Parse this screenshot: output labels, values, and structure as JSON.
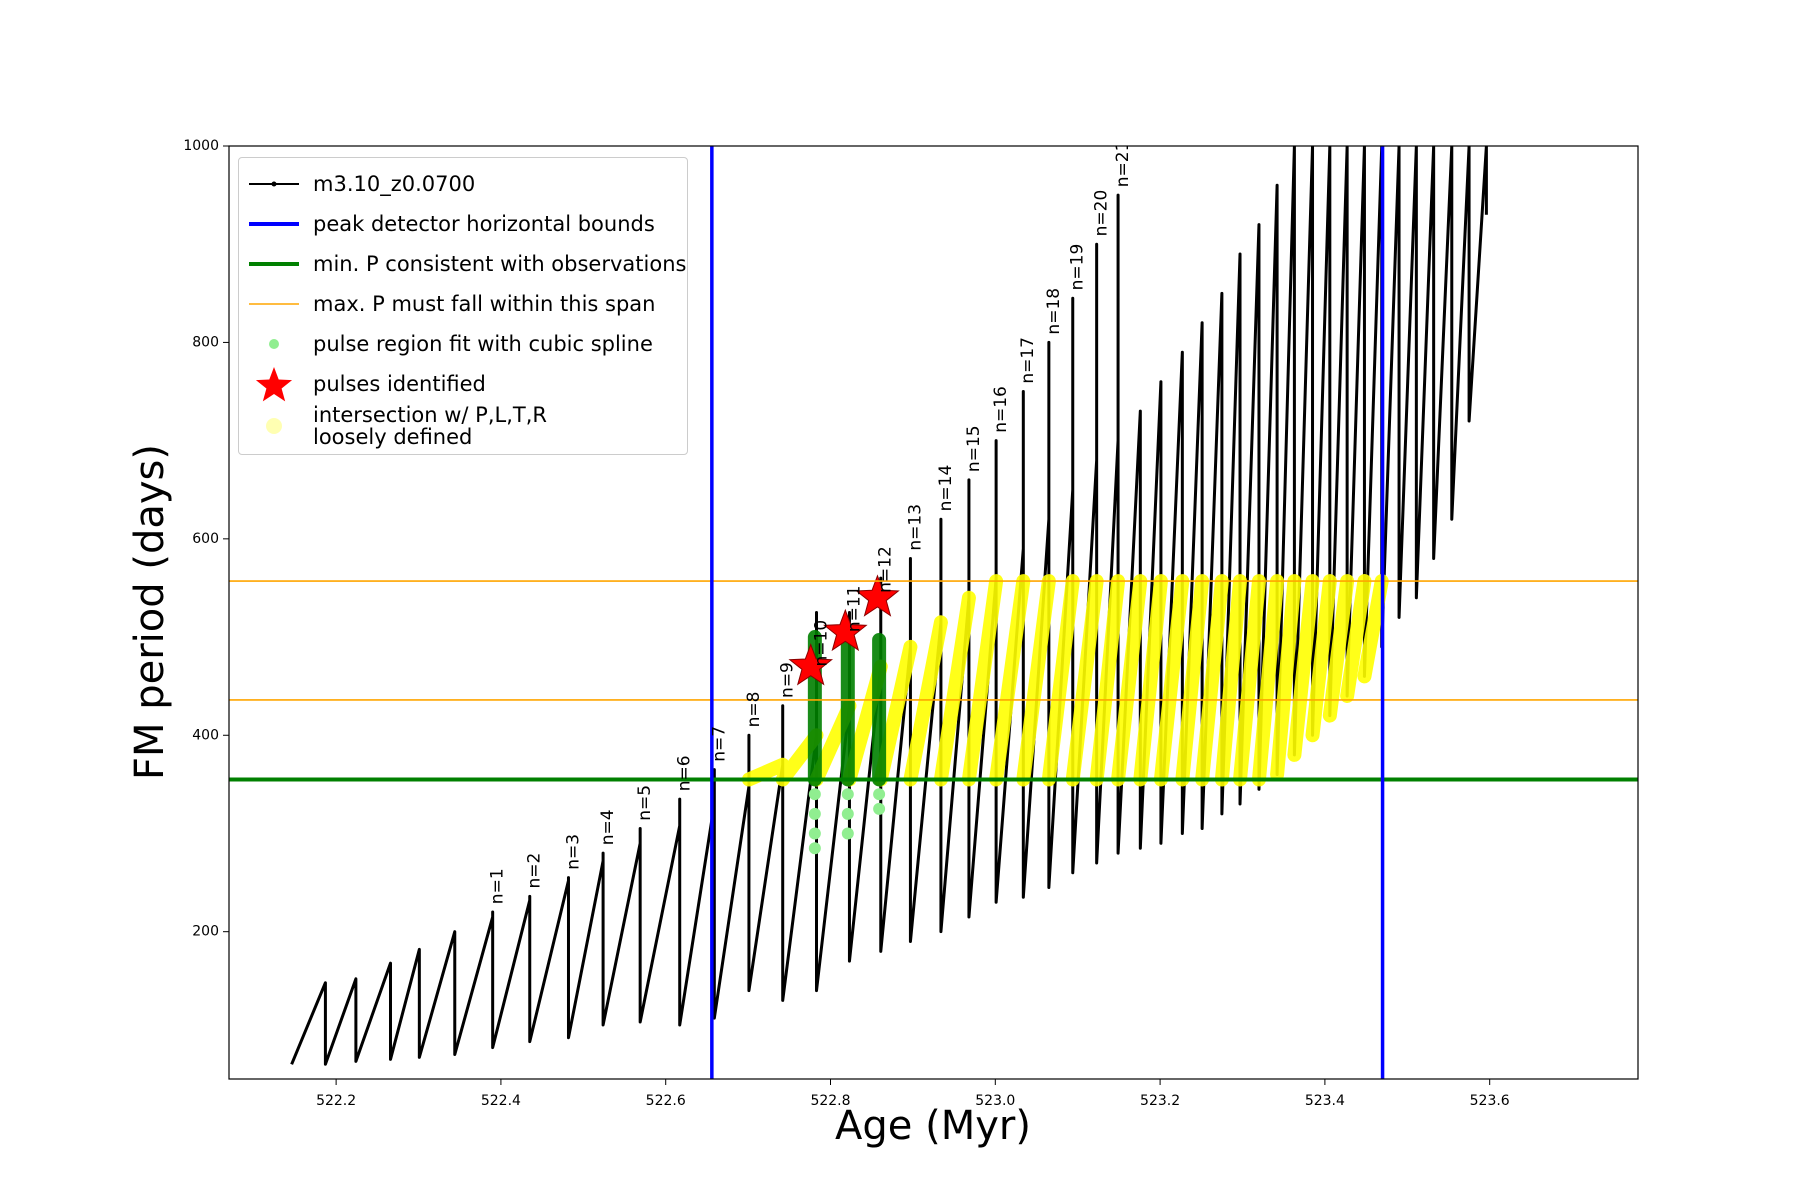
{
  "chart_data": {
    "type": "line",
    "xlabel": "Age (Myr)",
    "ylabel": "FM period (days)",
    "xlim": [
      522.07,
      523.78
    ],
    "ylim": [
      50,
      1000
    ],
    "xticks": [
      522.2,
      522.4,
      522.6,
      522.8,
      {
        "value": 523,
        "label": "523.0"
      },
      523.2,
      523.4,
      523.6
    ],
    "yticks": [
      200,
      400,
      600,
      800,
      1000
    ],
    "legend": "upper left",
    "series": [
      {
        "name": "m3.10_z0.0700",
        "color": "#000000",
        "type": "line",
        "x": [
          522.146,
          522.187,
          522.187,
          522.224,
          522.224,
          522.266,
          522.266,
          522.301,
          522.301,
          522.344,
          522.344,
          522.39,
          522.39,
          522.39,
          522.435,
          522.435,
          522.435,
          522.482,
          522.482,
          522.482,
          522.524,
          522.524,
          522.524,
          522.569,
          522.569,
          522.569,
          522.617,
          522.617,
          522.617,
          522.659,
          522.659,
          522.659,
          522.701,
          522.701,
          522.701,
          522.742,
          522.742,
          522.742,
          522.783,
          522.783,
          522.783,
          522.823,
          522.823,
          522.823,
          522.861,
          522.861,
          522.861,
          522.897,
          522.897,
          522.897,
          522.934,
          522.934,
          522.934,
          522.968,
          522.968,
          522.968,
          523.001,
          523.001,
          523.001,
          523.034,
          523.034,
          523.034,
          523.065,
          523.065,
          523.065,
          523.094,
          523.094,
          523.094,
          523.123,
          523.123,
          523.123,
          523.149,
          523.149,
          523.149,
          523.176,
          523.176,
          523.201,
          523.201,
          523.227,
          523.227,
          523.251,
          523.251,
          523.275,
          523.275,
          523.297,
          523.297,
          523.32,
          523.32,
          523.342,
          523.342,
          523.363,
          523.363,
          523.385,
          523.385,
          523.406,
          523.406,
          523.427,
          523.427,
          523.448,
          523.448,
          523.469,
          523.469,
          523.49,
          523.49,
          523.511,
          523.511,
          523.532,
          523.532,
          523.554,
          523.554,
          523.575,
          523.575,
          523.596,
          523.596
        ],
        "values": [
          65,
          148,
          65,
          152,
          68,
          168,
          70,
          182,
          72,
          200,
          75,
          215,
          220,
          82,
          232,
          236,
          88,
          252,
          255,
          92,
          272,
          280,
          105,
          290,
          305,
          108,
          308,
          335,
          105,
          330,
          365,
          112,
          348,
          400,
          140,
          370,
          430,
          130,
          400,
          525,
          140,
          430,
          525,
          170,
          470,
          560,
          180,
          490,
          580,
          190,
          515,
          620,
          200,
          540,
          660,
          215,
          560,
          700,
          230,
          590,
          750,
          235,
          620,
          800,
          245,
          650,
          845,
          260,
          680,
          900,
          270,
          700,
          950,
          280,
          730,
          285,
          760,
          290,
          790,
          300,
          820,
          305,
          850,
          320,
          890,
          330,
          920,
          345,
          960,
          360,
          1000,
          380,
          1000,
          400,
          1000,
          420,
          1000,
          440,
          1000,
          460,
          1000,
          490,
          1000,
          520,
          1000,
          540,
          1000,
          580,
          1000,
          620,
          1000,
          720,
          1000,
          930
        ]
      },
      {
        "name": "peak detector horizontal bounds",
        "color": "#0000ff",
        "type": "vline",
        "values": [
          522.656,
          523.47
        ]
      },
      {
        "name": "min. P consistent with observations",
        "color": "#008000",
        "type": "hline",
        "style": "thick",
        "values": [
          355
        ]
      },
      {
        "name": "max. P must fall within this span",
        "color": "#ffa500",
        "type": "hline",
        "style": "thin",
        "values": [
          436,
          557
        ]
      },
      {
        "name": "pulse region fit with cubic spline",
        "color": "#90ee90",
        "type": "scatter",
        "x": [
          522.781,
          522.781,
          522.781,
          522.781,
          522.821,
          522.821,
          522.821,
          522.859,
          522.859
        ],
        "values": [
          285,
          300,
          320,
          340,
          300,
          320,
          340,
          325,
          340
        ]
      },
      {
        "name": "pulses identified",
        "color": "#ff0000",
        "type": "star",
        "x": [
          522.776,
          522.818,
          522.857
        ],
        "values": [
          470,
          505,
          540
        ]
      },
      {
        "name": "intersection w/ P,L,T,R\nloosely defined",
        "color": "#ffff00",
        "type": "thickline",
        "x": [
          522.701,
          522.742,
          null,
          522.742,
          522.783,
          null,
          522.783,
          522.823,
          null,
          522.823,
          522.861,
          null,
          522.861,
          522.897,
          null,
          522.897,
          522.934,
          null,
          522.934,
          522.968,
          null,
          522.968,
          523.001,
          null,
          523.001,
          523.034,
          null,
          523.034,
          523.065,
          null,
          523.065,
          523.094,
          null,
          523.094,
          523.123,
          null,
          523.123,
          523.149,
          null,
          523.149,
          523.176,
          null,
          523.176,
          523.201,
          null,
          523.201,
          523.227,
          null,
          523.227,
          523.251,
          null,
          523.251,
          523.275,
          null,
          523.275,
          523.297,
          null,
          523.297,
          523.32,
          null,
          523.32,
          523.342,
          null,
          523.342,
          523.363,
          null,
          523.363,
          523.385,
          null,
          523.385,
          523.406,
          null,
          523.406,
          523.427,
          null,
          523.427,
          523.448,
          null,
          523.448,
          523.469
        ],
        "values": [
          355,
          370,
          null,
          355,
          400,
          null,
          355,
          430,
          null,
          355,
          470,
          null,
          355,
          490,
          null,
          355,
          515,
          null,
          355,
          540,
          null,
          355,
          557,
          null,
          355,
          557,
          null,
          355,
          557,
          null,
          355,
          557,
          null,
          355,
          557,
          null,
          355,
          557,
          null,
          355,
          557,
          null,
          355,
          557,
          null,
          355,
          557,
          null,
          355,
          557,
          null,
          355,
          557,
          null,
          355,
          557,
          null,
          355,
          557,
          null,
          355,
          557,
          null,
          360,
          557,
          null,
          380,
          557,
          null,
          400,
          557,
          null,
          420,
          557,
          null,
          440,
          557,
          null,
          460,
          557
        ]
      },
      {
        "color": "#008000",
        "type": "thickline",
        "x": [
          522.781,
          522.781,
          null,
          522.821,
          522.821,
          null,
          522.859,
          522.859
        ],
        "values": [
          355,
          500,
          null,
          355,
          500,
          null,
          355,
          497
        ]
      }
    ],
    "annotations": [
      {
        "text": "n=1",
        "x": 522.396,
        "y": 228
      },
      {
        "text": "n=2",
        "x": 522.441,
        "y": 244
      },
      {
        "text": "n=3",
        "x": 522.488,
        "y": 263
      },
      {
        "text": "n=4",
        "x": 522.53,
        "y": 288
      },
      {
        "text": "n=5",
        "x": 522.575,
        "y": 313
      },
      {
        "text": "n=6",
        "x": 522.623,
        "y": 343
      },
      {
        "text": "n=7",
        "x": 522.665,
        "y": 373
      },
      {
        "text": "n=8",
        "x": 522.707,
        "y": 408
      },
      {
        "text": "n=9",
        "x": 522.748,
        "y": 438
      },
      {
        "text": "n=10",
        "x": 522.789,
        "y": 470
      },
      {
        "text": "n=11",
        "x": 522.829,
        "y": 505
      },
      {
        "text": "n=12",
        "x": 522.867,
        "y": 545
      },
      {
        "text": "n=13",
        "x": 522.903,
        "y": 588
      },
      {
        "text": "n=14",
        "x": 522.94,
        "y": 628
      },
      {
        "text": "n=15",
        "x": 522.974,
        "y": 668
      },
      {
        "text": "n=16",
        "x": 523.007,
        "y": 708
      },
      {
        "text": "n=17",
        "x": 523.04,
        "y": 758
      },
      {
        "text": "n=18",
        "x": 523.071,
        "y": 808
      },
      {
        "text": "n=19",
        "x": 523.1,
        "y": 853
      },
      {
        "text": "n=20",
        "x": 523.129,
        "y": 908
      },
      {
        "text": "n=21",
        "x": 523.155,
        "y": 958
      }
    ]
  }
}
